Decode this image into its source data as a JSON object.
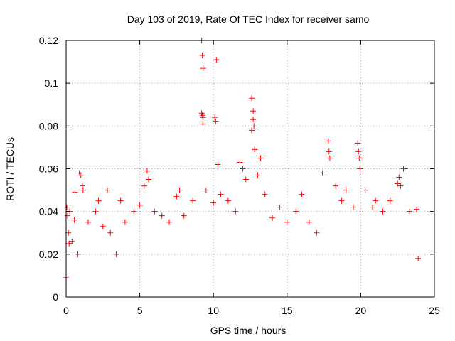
{
  "chart_data": {
    "type": "scatter",
    "title": "Day 103 of 2019, Rate Of TEC Index for receiver samo",
    "xlabel": "GPS time / hours",
    "ylabel": "ROTI / TECUs",
    "xlim": [
      0,
      25
    ],
    "ylim": [
      0,
      0.12
    ],
    "x_ticks": [
      0,
      5,
      10,
      15,
      20,
      25
    ],
    "x_tick_labels": [
      "0",
      "5",
      "10",
      "15",
      "20",
      "25"
    ],
    "y_ticks": [
      0,
      0.02,
      0.04,
      0.06,
      0.08,
      0.1,
      0.12
    ],
    "y_tick_labels": [
      "0",
      "0.02",
      "0.04",
      "0.06",
      "0.08",
      "0.1",
      "0.12"
    ],
    "grid": true,
    "marker": "+",
    "color": "#ff0000",
    "series": [
      {
        "name": "ROTI",
        "points": [
          [
            0.0,
            0.009
          ],
          [
            0.05,
            0.042
          ],
          [
            0.1,
            0.038
          ],
          [
            0.15,
            0.03
          ],
          [
            0.2,
            0.025
          ],
          [
            0.25,
            0.04
          ],
          [
            0.4,
            0.026
          ],
          [
            0.55,
            0.036
          ],
          [
            0.6,
            0.049
          ],
          [
            0.8,
            0.02
          ],
          [
            0.9,
            0.058
          ],
          [
            1.0,
            0.057
          ],
          [
            1.1,
            0.052
          ],
          [
            1.15,
            0.05
          ],
          [
            1.5,
            0.035
          ],
          [
            2.0,
            0.04
          ],
          [
            2.2,
            0.045
          ],
          [
            2.5,
            0.033
          ],
          [
            2.8,
            0.05
          ],
          [
            3.0,
            0.03
          ],
          [
            3.4,
            0.02
          ],
          [
            3.7,
            0.045
          ],
          [
            4.0,
            0.035
          ],
          [
            4.6,
            0.04
          ],
          [
            5.0,
            0.043
          ],
          [
            5.3,
            0.052
          ],
          [
            5.5,
            0.059
          ],
          [
            5.6,
            0.055
          ],
          [
            6.0,
            0.04
          ],
          [
            6.5,
            0.038
          ],
          [
            7.0,
            0.035
          ],
          [
            7.5,
            0.047
          ],
          [
            7.7,
            0.05
          ],
          [
            8.0,
            0.038
          ],
          [
            8.6,
            0.045
          ],
          [
            9.2,
            0.12
          ],
          [
            9.25,
            0.113
          ],
          [
            9.3,
            0.107
          ],
          [
            9.2,
            0.086
          ],
          [
            9.25,
            0.085
          ],
          [
            9.3,
            0.084
          ],
          [
            9.28,
            0.081
          ],
          [
            9.5,
            0.05
          ],
          [
            10.0,
            0.044
          ],
          [
            10.1,
            0.084
          ],
          [
            10.15,
            0.082
          ],
          [
            10.2,
            0.111
          ],
          [
            10.3,
            0.062
          ],
          [
            10.5,
            0.048
          ],
          [
            11.0,
            0.045
          ],
          [
            11.5,
            0.04
          ],
          [
            11.8,
            0.063
          ],
          [
            12.0,
            0.06
          ],
          [
            12.2,
            0.055
          ],
          [
            12.6,
            0.093
          ],
          [
            12.7,
            0.087
          ],
          [
            12.7,
            0.083
          ],
          [
            12.75,
            0.08
          ],
          [
            12.6,
            0.078
          ],
          [
            12.8,
            0.069
          ],
          [
            13.0,
            0.057
          ],
          [
            13.2,
            0.065
          ],
          [
            13.5,
            0.048
          ],
          [
            14.0,
            0.037
          ],
          [
            14.5,
            0.042
          ],
          [
            15.0,
            0.035
          ],
          [
            15.6,
            0.04
          ],
          [
            16.0,
            0.048
          ],
          [
            16.5,
            0.035
          ],
          [
            17.0,
            0.03
          ],
          [
            17.4,
            0.058
          ],
          [
            17.8,
            0.073
          ],
          [
            17.85,
            0.068
          ],
          [
            17.9,
            0.065
          ],
          [
            18.3,
            0.052
          ],
          [
            18.7,
            0.045
          ],
          [
            19.0,
            0.05
          ],
          [
            19.5,
            0.042
          ],
          [
            19.8,
            0.072
          ],
          [
            19.85,
            0.068
          ],
          [
            19.9,
            0.065
          ],
          [
            19.95,
            0.06
          ],
          [
            20.3,
            0.05
          ],
          [
            20.8,
            0.042
          ],
          [
            21.0,
            0.045
          ],
          [
            21.5,
            0.04
          ],
          [
            22.0,
            0.045
          ],
          [
            22.5,
            0.053
          ],
          [
            22.6,
            0.056
          ],
          [
            22.7,
            0.052
          ],
          [
            22.9,
            0.06
          ],
          [
            23.0,
            0.06
          ],
          [
            23.3,
            0.04
          ],
          [
            23.8,
            0.041
          ],
          [
            23.9,
            0.018
          ]
        ]
      }
    ]
  }
}
